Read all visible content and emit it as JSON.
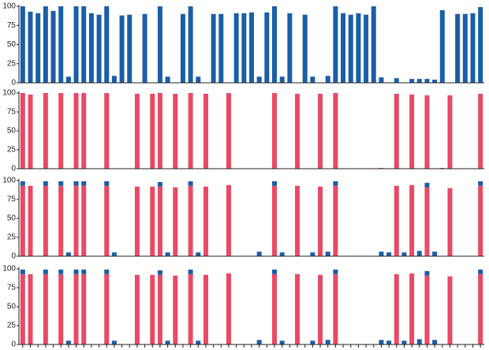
{
  "chart_data": [
    {
      "type": "bar",
      "color": "#1b5ea8",
      "ylim": [
        0,
        100
      ],
      "yticks": [
        0,
        25,
        50,
        75,
        100
      ],
      "categories": [
        null,
        null,
        null,
        null,
        null,
        null,
        null,
        null,
        null,
        null,
        null,
        null,
        null,
        null,
        null,
        null,
        null,
        null,
        null,
        null,
        null,
        null,
        null,
        null,
        null,
        null,
        null,
        null,
        null,
        null,
        null,
        null,
        null,
        null,
        null,
        null,
        null,
        null,
        null,
        null,
        null,
        null,
        null,
        null,
        null,
        null,
        null,
        null,
        null,
        null,
        null,
        null,
        null,
        null,
        null,
        null,
        null,
        null,
        null,
        null,
        null
      ],
      "values": [
        100,
        93,
        91,
        100,
        94,
        100,
        8,
        100,
        100,
        91,
        89,
        100,
        9,
        88,
        89,
        null,
        90,
        null,
        100,
        8,
        null,
        90,
        100,
        8,
        null,
        90,
        90,
        null,
        91,
        91,
        92,
        8,
        92,
        100,
        8,
        91,
        null,
        89,
        8,
        null,
        9,
        100,
        91,
        89,
        91,
        89,
        100,
        7,
        null,
        6,
        null,
        5,
        5,
        5,
        4,
        95,
        null,
        90,
        90,
        91,
        99
      ]
    },
    {
      "type": "bar",
      "color": "#e84a66",
      "ylim": [
        0,
        100
      ],
      "yticks": [
        0,
        25,
        50,
        75,
        100
      ],
      "categories": [
        null,
        null,
        null,
        null,
        null,
        null,
        null,
        null,
        null,
        null,
        null,
        null,
        null,
        null,
        null,
        null,
        null,
        null,
        null,
        null,
        null,
        null,
        null,
        null,
        null,
        null,
        null,
        null,
        null,
        null,
        null,
        null,
        null,
        null,
        null,
        null,
        null,
        null,
        null,
        null,
        null,
        null,
        null,
        null,
        null,
        null,
        null,
        null,
        null,
        null,
        null,
        null,
        null,
        null,
        null,
        null,
        null,
        null,
        null,
        null,
        null
      ],
      "values": [
        100,
        98,
        null,
        100,
        null,
        100,
        null,
        100,
        100,
        null,
        null,
        100,
        null,
        null,
        null,
        99,
        null,
        99,
        100,
        null,
        99,
        null,
        100,
        null,
        99,
        null,
        null,
        100,
        null,
        null,
        null,
        null,
        null,
        100,
        null,
        null,
        99,
        null,
        null,
        99,
        null,
        100,
        null,
        null,
        null,
        null,
        null,
        1,
        null,
        99,
        null,
        98,
        null,
        97,
        null,
        1,
        97,
        null,
        null,
        null,
        99
      ]
    },
    {
      "type": "stacked_bar",
      "ylim": [
        0,
        100
      ],
      "yticks": [
        0,
        25,
        50,
        75,
        100
      ],
      "categories": [
        null,
        null,
        null,
        null,
        null,
        null,
        null,
        null,
        null,
        null,
        null,
        null,
        null,
        null,
        null,
        null,
        null,
        null,
        null,
        null,
        null,
        null,
        null,
        null,
        null,
        null,
        null,
        null,
        null,
        null,
        null,
        null,
        null,
        null,
        null,
        null,
        null,
        null,
        null,
        null,
        null,
        null,
        null,
        null,
        null,
        null,
        null,
        null,
        null,
        null,
        null,
        null,
        null,
        null,
        null,
        null,
        null,
        null,
        null,
        null,
        null
      ],
      "series": [
        {
          "color": "#e84a66",
          "values": [
            93,
            93,
            null,
            93,
            null,
            93,
            null,
            93,
            93,
            null,
            null,
            93,
            null,
            null,
            null,
            92,
            null,
            92,
            92,
            null,
            91,
            null,
            93,
            null,
            92,
            null,
            null,
            94,
            null,
            null,
            null,
            null,
            null,
            93,
            null,
            null,
            93,
            null,
            null,
            92,
            null,
            93,
            null,
            null,
            null,
            null,
            null,
            null,
            null,
            93,
            null,
            94,
            null,
            91,
            null,
            null,
            90,
            null,
            null,
            null,
            93
          ]
        },
        {
          "color": "#1b5ea8",
          "values": [
            6,
            null,
            null,
            6,
            null,
            6,
            5,
            6,
            6,
            null,
            null,
            6,
            5,
            null,
            null,
            null,
            null,
            null,
            6,
            5,
            null,
            null,
            6,
            5,
            null,
            null,
            null,
            null,
            null,
            null,
            null,
            6,
            null,
            6,
            5,
            null,
            null,
            null,
            5,
            null,
            6,
            6,
            null,
            null,
            null,
            null,
            null,
            6,
            5,
            null,
            5,
            null,
            7,
            6,
            6,
            null,
            null,
            null,
            null,
            null,
            6
          ]
        }
      ]
    },
    {
      "type": "stacked_bar",
      "ylim": [
        0,
        100
      ],
      "yticks": [
        0,
        25,
        50,
        75,
        100
      ],
      "categories": [
        null,
        null,
        null,
        null,
        null,
        null,
        null,
        null,
        null,
        null,
        null,
        null,
        null,
        null,
        null,
        null,
        null,
        null,
        null,
        null,
        null,
        null,
        null,
        null,
        null,
        null,
        null,
        null,
        null,
        null,
        null,
        null,
        null,
        null,
        null,
        null,
        null,
        null,
        null,
        null,
        null,
        null,
        null,
        null,
        null,
        null,
        null,
        null,
        null,
        null,
        null,
        null,
        null,
        null,
        null,
        null,
        null,
        null,
        null,
        null,
        null
      ],
      "series": [
        {
          "color": "#e84a66",
          "values": [
            93,
            93,
            null,
            93,
            null,
            93,
            null,
            93,
            93,
            null,
            null,
            93,
            null,
            null,
            null,
            92,
            null,
            92,
            92,
            null,
            91,
            null,
            93,
            null,
            92,
            null,
            null,
            94,
            null,
            null,
            null,
            null,
            null,
            93,
            null,
            null,
            93,
            null,
            null,
            92,
            null,
            93,
            null,
            null,
            null,
            null,
            null,
            null,
            null,
            93,
            null,
            94,
            null,
            91,
            null,
            null,
            90,
            null,
            null,
            null,
            93
          ]
        },
        {
          "color": "#1b5ea8",
          "values": [
            6,
            null,
            null,
            6,
            null,
            6,
            5,
            6,
            6,
            null,
            null,
            6,
            5,
            null,
            null,
            null,
            null,
            null,
            6,
            5,
            null,
            null,
            6,
            5,
            null,
            null,
            null,
            null,
            null,
            null,
            null,
            6,
            null,
            6,
            5,
            null,
            null,
            null,
            5,
            null,
            6,
            6,
            null,
            null,
            null,
            null,
            null,
            6,
            5,
            null,
            5,
            null,
            7,
            6,
            6,
            null,
            null,
            null,
            null,
            null,
            6
          ]
        }
      ]
    }
  ]
}
